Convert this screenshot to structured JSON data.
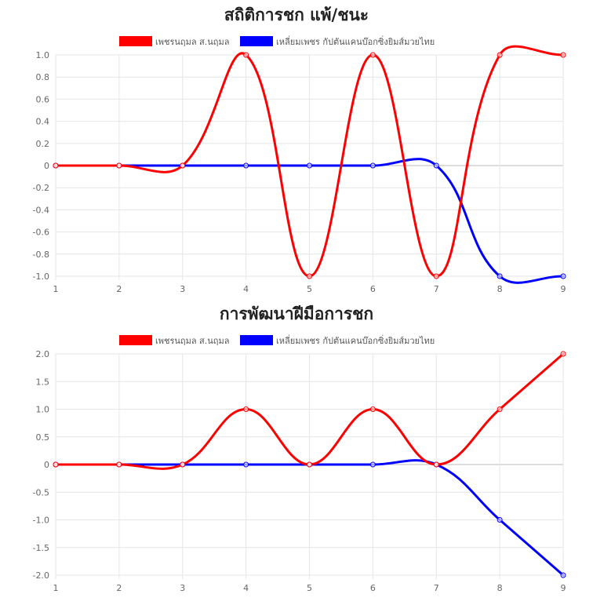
{
  "colors": {
    "series_a": "#ff0000",
    "series_b": "#0000ff",
    "grid": "#e6e6e6",
    "zero_line": "#bbbbbb"
  },
  "chart_data": [
    {
      "type": "line",
      "title": "สถิติการชก แพ้/ชนะ",
      "x": [
        1,
        2,
        3,
        4,
        5,
        6,
        7,
        8,
        9
      ],
      "ylim": [
        -1,
        1
      ],
      "ytick_labels": [
        "1.0",
        "0.8",
        "0.6",
        "0.4",
        "0.2",
        "0",
        "-0.2",
        "-0.4",
        "-0.6",
        "-0.8",
        "-1.0"
      ],
      "ytick_values": [
        1,
        0.8,
        0.6,
        0.4,
        0.2,
        0,
        -0.2,
        -0.4,
        -0.6,
        -0.8,
        -1
      ],
      "legend_position": "top",
      "grid": true,
      "series": [
        {
          "name": "เพชรนฤมล ส.นฤมล",
          "color": "#ff0000",
          "values": [
            0,
            0,
            0,
            1,
            -1,
            1,
            -1,
            1,
            1
          ]
        },
        {
          "name": "เหลี่ยมเพชร กัปตันแคนบ๊อกซิ่งยิมส์มวยไทย",
          "color": "#0000ff",
          "values": [
            0,
            0,
            0,
            0,
            0,
            0,
            0,
            -1,
            -1
          ]
        }
      ]
    },
    {
      "type": "line",
      "title": "การพัฒนาฝีมือการชก",
      "x": [
        1,
        2,
        3,
        4,
        5,
        6,
        7,
        8,
        9
      ],
      "ylim": [
        -2,
        2
      ],
      "ytick_labels": [
        "2.0",
        "1.5",
        "1.0",
        "0.5",
        "0",
        "-0.5",
        "-1.0",
        "-1.5",
        "-2.0"
      ],
      "ytick_values": [
        2,
        1.5,
        1,
        0.5,
        0,
        -0.5,
        -1,
        -1.5,
        -2
      ],
      "legend_position": "top",
      "grid": true,
      "series": [
        {
          "name": "เพชรนฤมล ส.นฤมล",
          "color": "#ff0000",
          "values": [
            0,
            0,
            0,
            1,
            0,
            1,
            0,
            1,
            2
          ]
        },
        {
          "name": "เหลี่ยมเพชร กัปตันแคนบ๊อกซิ่งยิมส์มวยไทย",
          "color": "#0000ff",
          "values": [
            0,
            0,
            0,
            0,
            0,
            0,
            0,
            -1,
            -2
          ]
        }
      ]
    }
  ]
}
